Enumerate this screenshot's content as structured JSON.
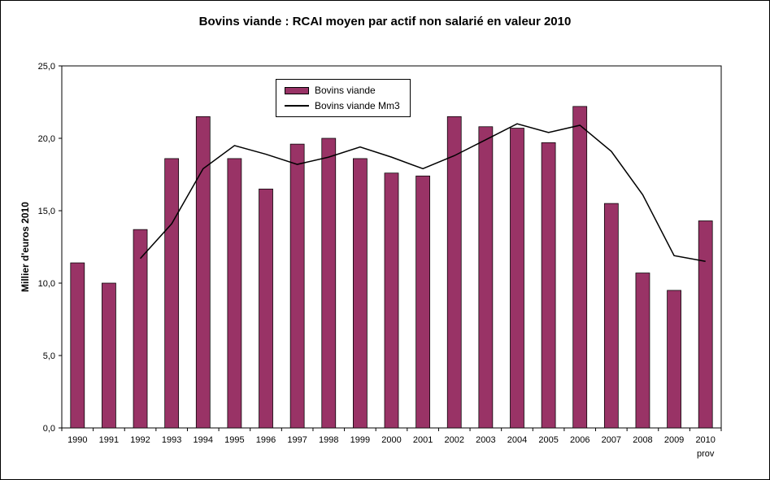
{
  "chart_title": "Bovins viande : RCAI moyen par actif non salarié en valeur 2010",
  "y_axis_title": "Millier d'euros 2010",
  "chart_data": {
    "type": "bar",
    "title": "Bovins viande : RCAI moyen par actif non salarié en valeur 2010",
    "xlabel": "",
    "ylabel": "Millier d'euros 2010",
    "ylim": [
      0,
      25
    ],
    "ytick_step": 5,
    "ytick_labels": [
      "0,0",
      "5,0",
      "10,0",
      "15,0",
      "20,0",
      "25,0"
    ],
    "grid": false,
    "legend_position": "top-center",
    "categories": [
      "1990",
      "1991",
      "1992",
      "1993",
      "1994",
      "1995",
      "1996",
      "1997",
      "1998",
      "1999",
      "2000",
      "2001",
      "2002",
      "2003",
      "2004",
      "2005",
      "2006",
      "2007",
      "2008",
      "2009",
      "2010"
    ],
    "x_note": "prov",
    "series": [
      {
        "name": "Bovins viande",
        "type": "bar",
        "color": "#993366",
        "values": [
          11.4,
          10.0,
          13.7,
          18.6,
          21.5,
          18.6,
          16.5,
          19.6,
          20.0,
          18.6,
          17.6,
          17.4,
          21.5,
          20.8,
          20.7,
          19.7,
          22.2,
          15.5,
          10.7,
          9.5,
          14.3
        ]
      },
      {
        "name": "Bovins viande Mm3",
        "type": "line",
        "color": "#000000",
        "values": [
          null,
          null,
          11.7,
          14.1,
          17.9,
          19.5,
          18.9,
          18.2,
          18.7,
          19.4,
          18.7,
          17.9,
          18.8,
          19.9,
          21.0,
          20.4,
          20.9,
          19.1,
          16.1,
          11.9,
          11.5
        ]
      }
    ]
  }
}
